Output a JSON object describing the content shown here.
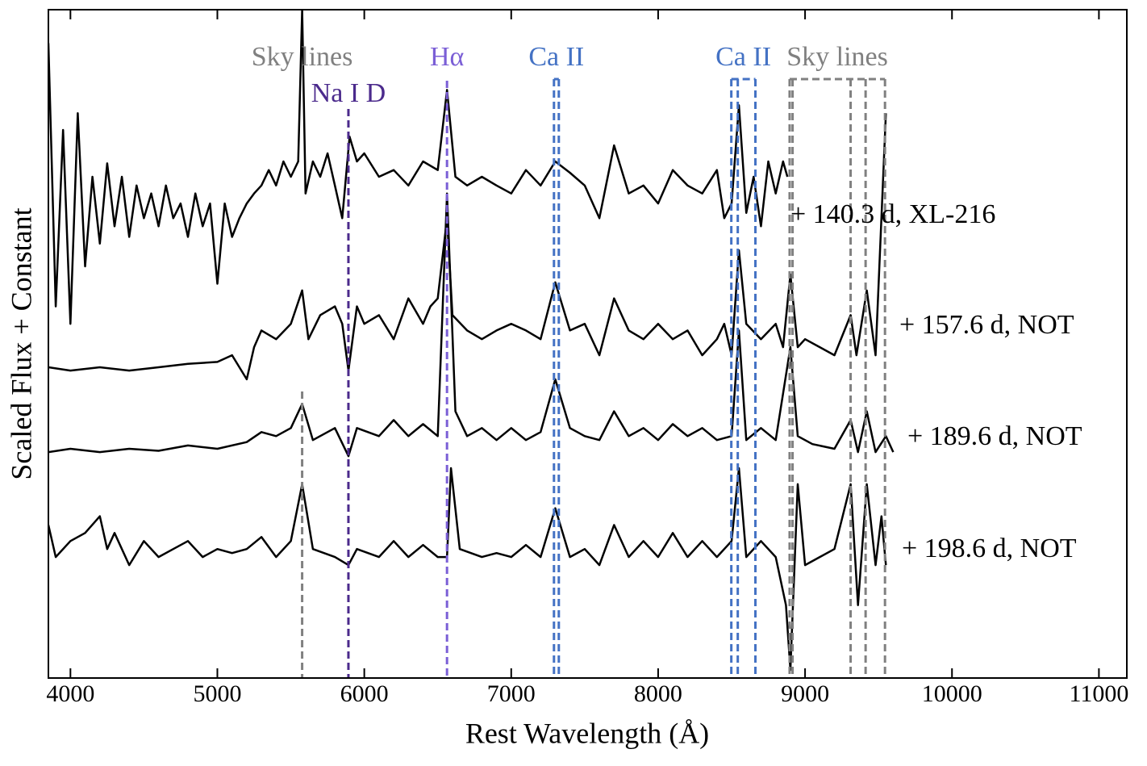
{
  "chart_data": {
    "type": "line",
    "xlabel": "Rest Wavelength (Å)",
    "ylabel": "Scaled Flux + Constant",
    "xlim": [
      3850,
      11190
    ],
    "ylim": [
      0,
      100
    ],
    "xticks": [
      4000,
      5000,
      6000,
      7000,
      8000,
      9000,
      10000,
      11000
    ],
    "lines": [
      {
        "label": "Sky lines",
        "color": "#808080",
        "x": [
          5577
        ]
      },
      {
        "label": "Na I D",
        "color": "#4b2a8c",
        "x": [
          5892
        ]
      },
      {
        "label": "Hα",
        "color": "#7b5fd6",
        "x": [
          6563
        ]
      },
      {
        "label": "Ca II",
        "color": "#4472c4",
        "x": [
          7291,
          7324
        ]
      },
      {
        "label": "Ca II",
        "color": "#4472c4",
        "x": [
          8498,
          8542,
          8662
        ]
      },
      {
        "label": "Sky lines",
        "color": "#808080",
        "x": [
          8895,
          8915,
          9310,
          9412,
          9544
        ]
      }
    ],
    "series": [
      {
        "name": "+ 140.3 d, XL-216",
        "color": "#000000",
        "x": [
          3850,
          3900,
          3950,
          4000,
          4050,
          4100,
          4150,
          4200,
          4250,
          4300,
          4350,
          4400,
          4450,
          4500,
          4550,
          4600,
          4650,
          4700,
          4750,
          4800,
          4850,
          4900,
          4950,
          5000,
          5050,
          5100,
          5150,
          5200,
          5250,
          5300,
          5350,
          5400,
          5450,
          5500,
          5550,
          5577,
          5600,
          5650,
          5700,
          5750,
          5800,
          5850,
          5900,
          5950,
          6000,
          6100,
          6200,
          6300,
          6400,
          6500,
          6563,
          6620,
          6700,
          6800,
          6900,
          7000,
          7100,
          7200,
          7300,
          7400,
          7500,
          7600,
          7700,
          7800,
          7900,
          8000,
          8100,
          8200,
          8300,
          8400,
          8450,
          8500,
          8550,
          8600,
          8650,
          8700,
          8750,
          8800,
          8850,
          8880
        ],
        "values": [
          95,
          55.6,
          82,
          53,
          84.5,
          61.6,
          75,
          65,
          77,
          67.6,
          75,
          66,
          73.7,
          68.8,
          72.5,
          67.6,
          73.7,
          68.8,
          71,
          66,
          72.5,
          67.6,
          71,
          59,
          71,
          66,
          68.8,
          71,
          72.5,
          73.7,
          76,
          73.7,
          77.3,
          75,
          77.3,
          100,
          72.5,
          77.3,
          75,
          78.5,
          73.7,
          68.8,
          81,
          77.3,
          78.5,
          75,
          76,
          73.7,
          77.3,
          76,
          88,
          75,
          73.7,
          75,
          73.7,
          72.5,
          76,
          73.7,
          77.3,
          75.6,
          73.7,
          68.8,
          79.7,
          72.5,
          73.7,
          71,
          76,
          73.7,
          72.5,
          76,
          68.8,
          71,
          85.7,
          69.6,
          75,
          67.6,
          77.3,
          72.5,
          77.3,
          75
        ]
      },
      {
        "name": "+ 157.6 d, NOT",
        "color": "#000000",
        "x": [
          3850,
          4000,
          4200,
          4400,
          4600,
          4800,
          5000,
          5100,
          5200,
          5250,
          5300,
          5400,
          5500,
          5577,
          5620,
          5700,
          5800,
          5850,
          5892,
          5950,
          6000,
          6100,
          6200,
          6300,
          6400,
          6450,
          6500,
          6563,
          6600,
          6700,
          6800,
          6900,
          7000,
          7100,
          7200,
          7300,
          7400,
          7500,
          7600,
          7700,
          7800,
          7900,
          8000,
          8100,
          8200,
          8300,
          8400,
          8450,
          8500,
          8550,
          8600,
          8700,
          8800,
          8850,
          8900,
          8950,
          9000,
          9100,
          9200,
          9310,
          9350,
          9420,
          9480,
          9550
        ],
        "values": [
          46.5,
          46,
          46.5,
          46,
          46.5,
          47,
          47.3,
          48.3,
          44.7,
          49.5,
          52,
          50.7,
          53,
          58,
          50.7,
          54.3,
          55.6,
          53,
          46,
          55.6,
          53,
          54.3,
          50.7,
          56.8,
          53,
          55.6,
          56.8,
          68.8,
          54.3,
          52,
          50.7,
          52,
          53,
          52,
          50.7,
          59.2,
          52,
          53,
          48.3,
          56.8,
          52,
          50.7,
          53,
          50.7,
          52,
          48.3,
          50.7,
          53,
          48.3,
          64,
          53,
          50.7,
          53,
          49.5,
          60.4,
          49.5,
          50.7,
          49.5,
          48.3,
          54.3,
          48.3,
          58,
          48.3,
          84.5
        ]
      },
      {
        "name": "+ 189.6 d, NOT",
        "color": "#000000",
        "x": [
          3850,
          4000,
          4200,
          4400,
          4600,
          4800,
          5000,
          5200,
          5300,
          5400,
          5500,
          5577,
          5650,
          5800,
          5892,
          5950,
          6100,
          6200,
          6300,
          6400,
          6500,
          6563,
          6620,
          6700,
          6800,
          6900,
          7000,
          7100,
          7200,
          7300,
          7400,
          7500,
          7600,
          7700,
          7800,
          7900,
          8000,
          8100,
          8200,
          8300,
          8400,
          8500,
          8550,
          8600,
          8700,
          8800,
          8900,
          8950,
          9050,
          9200,
          9310,
          9360,
          9420,
          9480,
          9550,
          9600
        ],
        "values": [
          33.8,
          34.3,
          33.8,
          34.3,
          34,
          34.8,
          34.3,
          35.3,
          36.8,
          36.2,
          37.4,
          41,
          35.6,
          37.4,
          33.2,
          37.4,
          36.2,
          38.6,
          36.2,
          38,
          36.2,
          72.5,
          39.9,
          36.2,
          37.4,
          35.6,
          37.4,
          35.6,
          36.8,
          44.7,
          37.4,
          36.2,
          35.6,
          39.9,
          36.2,
          37.4,
          35.6,
          38,
          36.2,
          37.4,
          35.6,
          36.2,
          52,
          35.6,
          37.4,
          35.6,
          49.5,
          36.2,
          35,
          34.3,
          38.6,
          33.8,
          39.9,
          33.8,
          36.2,
          33.8
        ]
      },
      {
        "name": "+ 198.6 d, NOT",
        "color": "#000000",
        "x": [
          3850,
          3900,
          4000,
          4100,
          4200,
          4250,
          4300,
          4400,
          4500,
          4600,
          4700,
          4800,
          4900,
          5000,
          5100,
          5200,
          5300,
          5400,
          5500,
          5577,
          5650,
          5800,
          5892,
          5950,
          6100,
          6200,
          6300,
          6400,
          6500,
          6563,
          6590,
          6650,
          6800,
          6900,
          7000,
          7100,
          7200,
          7300,
          7400,
          7500,
          7600,
          7700,
          7800,
          7900,
          8000,
          8100,
          8200,
          8300,
          8400,
          8500,
          8550,
          8600,
          8700,
          8800,
          8870,
          8900,
          8950,
          9000,
          9100,
          9200,
          9310,
          9360,
          9420,
          9480,
          9520,
          9550
        ],
        "values": [
          22.9,
          18.1,
          20.5,
          21.7,
          24.2,
          19.3,
          21.7,
          16.9,
          20.5,
          18.1,
          19.3,
          20.5,
          18.1,
          19.3,
          18.7,
          19.3,
          21.1,
          18.1,
          20.5,
          29,
          19.3,
          18.1,
          16.9,
          19.3,
          18.1,
          20.5,
          18.1,
          19.9,
          18.1,
          18.1,
          31.4,
          19.3,
          18.1,
          18.7,
          18.1,
          19.9,
          18.1,
          25.4,
          18.1,
          19.3,
          16.9,
          22.9,
          18.1,
          20.5,
          18.1,
          21.7,
          18.1,
          20.5,
          18.1,
          20.5,
          31.4,
          18.1,
          20.5,
          18.1,
          10.9,
          1.2,
          29,
          16.9,
          18.1,
          19.3,
          29,
          10.9,
          29,
          16.9,
          24.2,
          16.9
        ]
      }
    ]
  }
}
